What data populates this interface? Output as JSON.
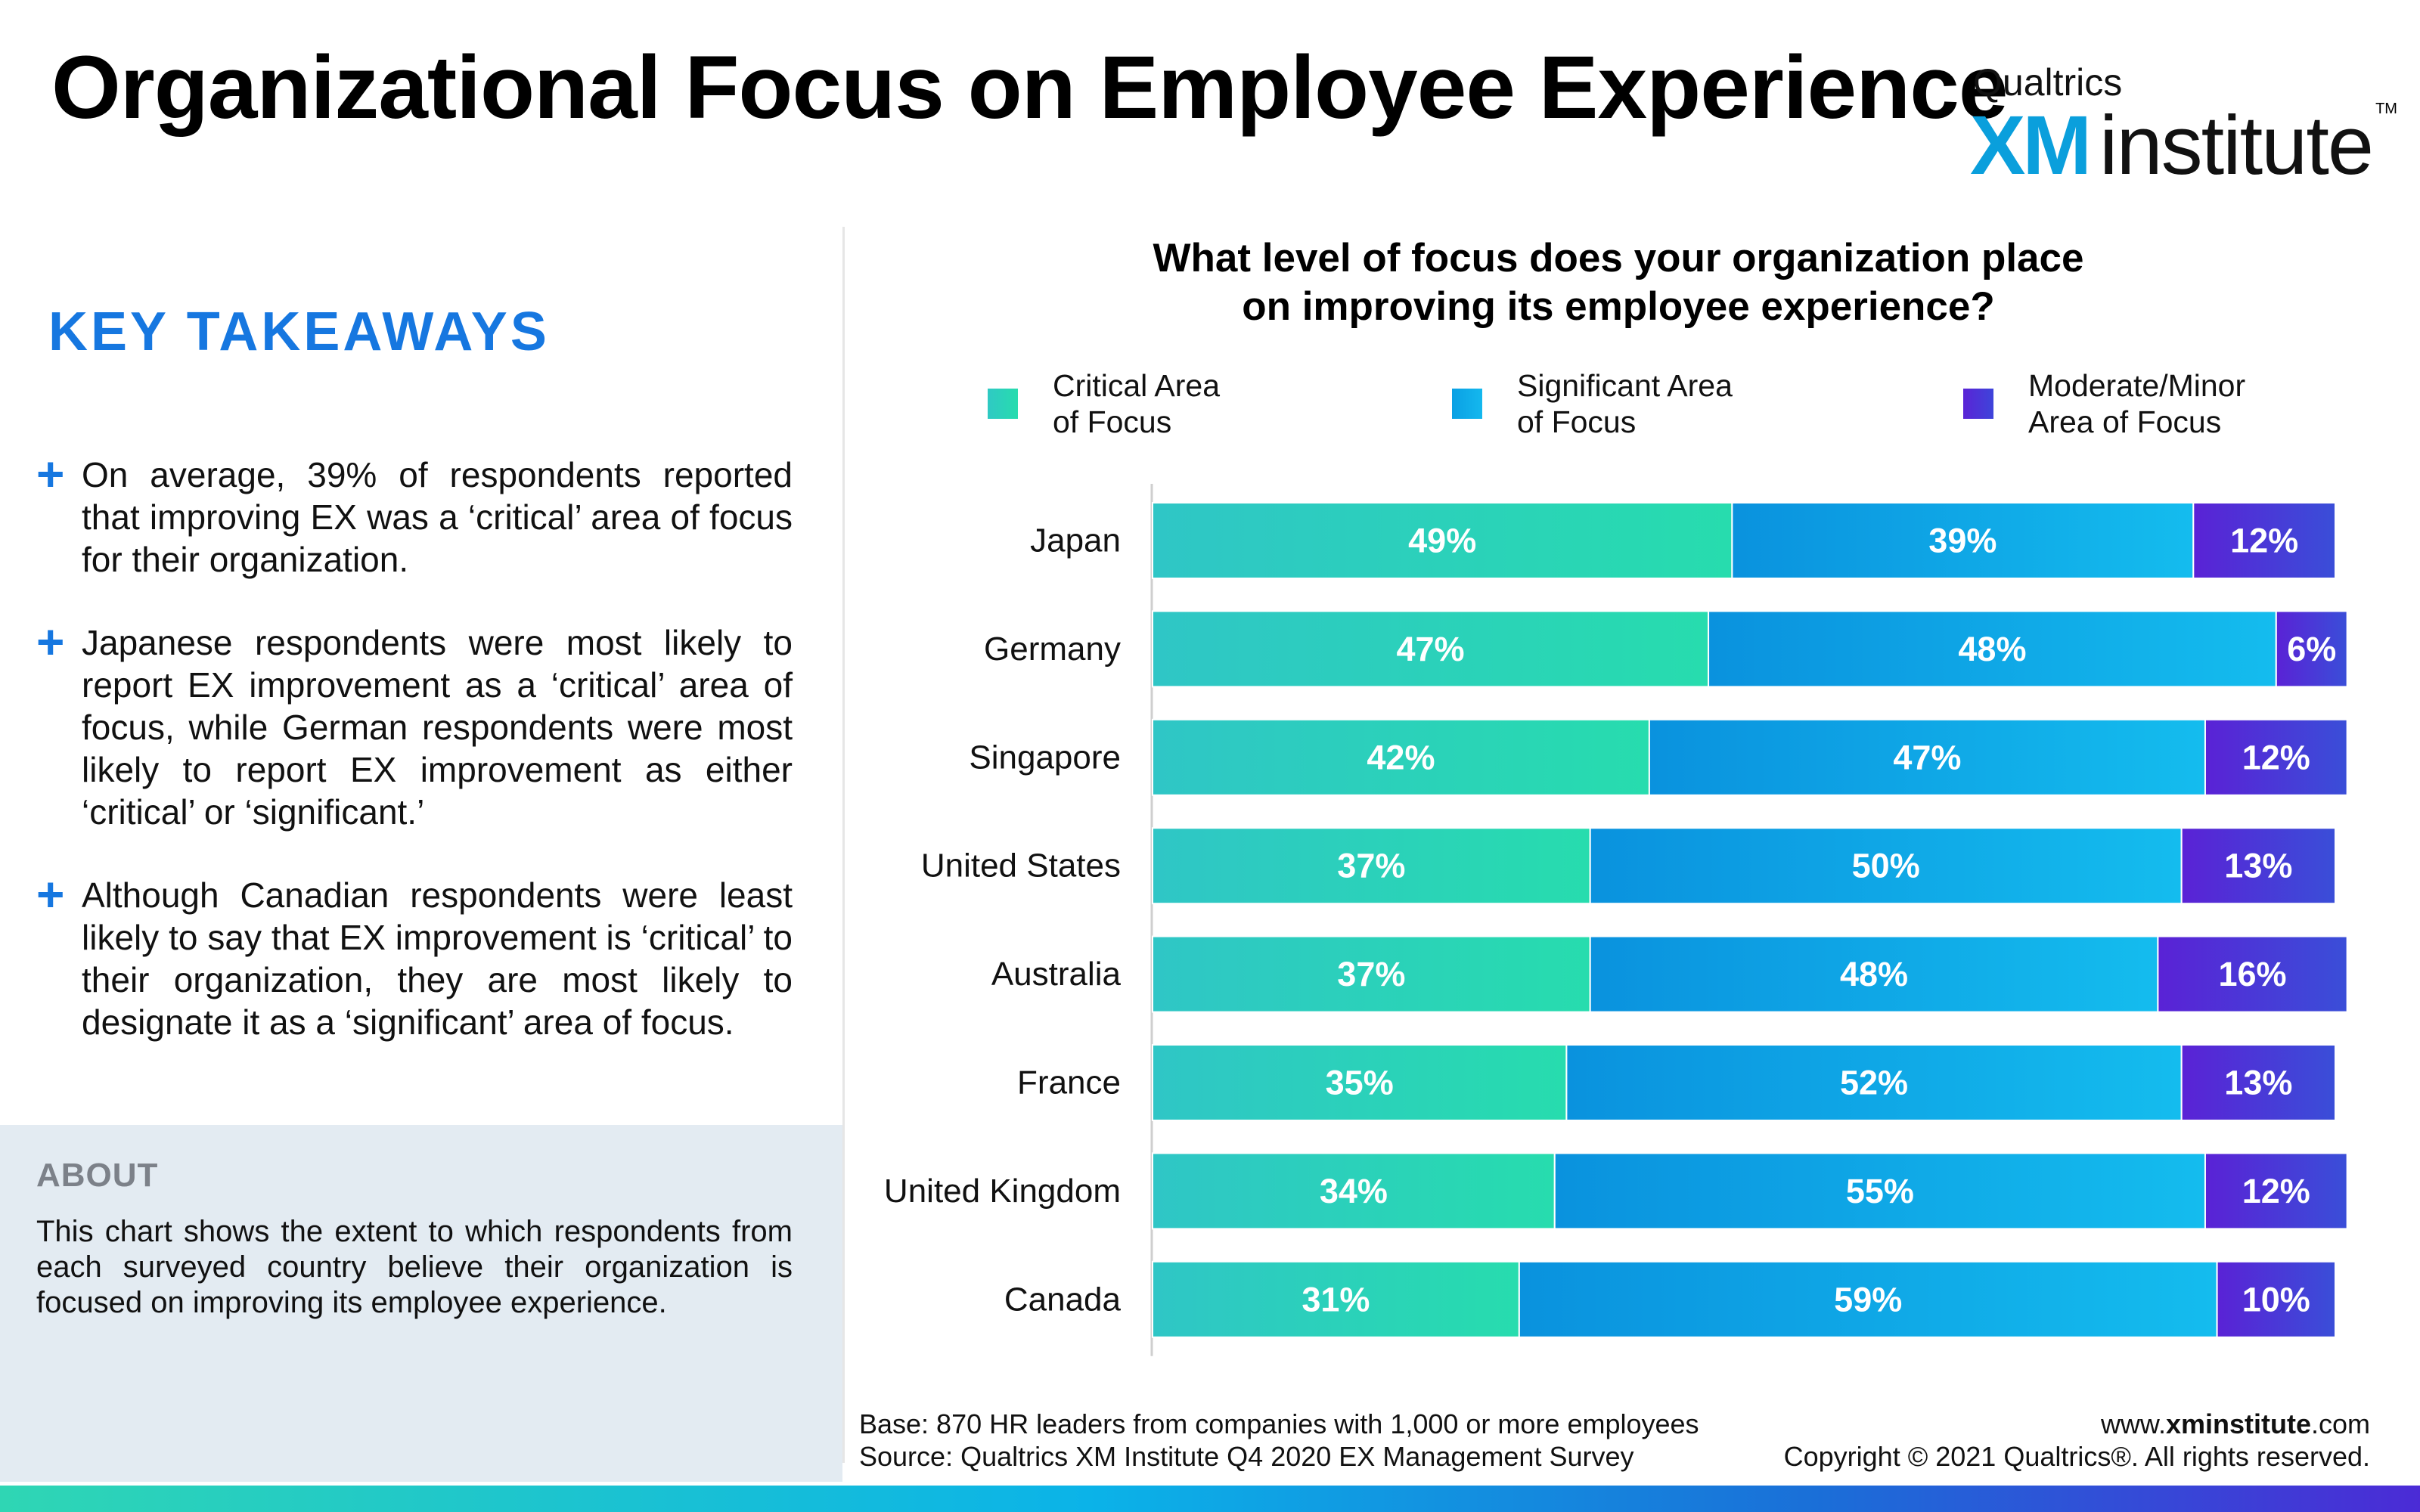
{
  "header": {
    "title": "Organizational Focus on Employee Experience",
    "logo_top": "Qualtrics",
    "logo_xm": "XM",
    "logo_institute": "institute",
    "logo_tm": "TM"
  },
  "takeaways": {
    "heading": "KEY TAKEAWAYS",
    "bullets": [
      "On average, 39% of respondents reported that improving EX was a ‘critical’ area of focus for their organization.",
      "Japanese respondents were most likely to report EX improvement as a ‘critical’ area of focus, while German respondents were most likely to report EX improvement as either ‘critical’ or ‘significant.’",
      "Although Canadian respondents were least likely to say that EX improvement is ‘critical’ to their organization, they are most likely to designate it as a ‘significant’ area of focus."
    ],
    "plus_symbol": "+"
  },
  "about": {
    "heading": "ABOUT",
    "text": "This chart shows the extent to which respondents from each surveyed country believe their organization is focused on improving its employee experience."
  },
  "question": {
    "line1": "What level of focus does your organization place",
    "line2": "on improving its employee experience?"
  },
  "legend": [
    {
      "line1": "Critical Area",
      "line2": "of Focus",
      "color": "#2cd6b6"
    },
    {
      "line1": "Significant Area",
      "line2": "of Focus",
      "color": "#0eb0ea"
    },
    {
      "line1": "Moderate/Minor",
      "line2": "Area of Focus",
      "color": "#4a2ad4"
    }
  ],
  "chart_data": {
    "type": "bar",
    "orientation": "horizontal",
    "stacked": true,
    "categories": [
      "Japan",
      "Germany",
      "Singapore",
      "United States",
      "Australia",
      "France",
      "United Kingdom",
      "Canada"
    ],
    "series": [
      {
        "name": "Critical Area of Focus",
        "values": [
          49,
          47,
          42,
          37,
          37,
          35,
          34,
          31
        ],
        "labels": [
          "49%",
          "47%",
          "42%",
          "37%",
          "37%",
          "35%",
          "34%",
          "31%"
        ],
        "color": "#2cd6b6"
      },
      {
        "name": "Significant Area of Focus",
        "values": [
          39,
          48,
          47,
          50,
          48,
          52,
          55,
          59
        ],
        "labels": [
          "39%",
          "48%",
          "47%",
          "50%",
          "48%",
          "52%",
          "55%",
          "59%"
        ],
        "color": "#0eb0ea"
      },
      {
        "name": "Moderate/Minor Area of Focus",
        "values": [
          12,
          6,
          12,
          13,
          16,
          13,
          12,
          10
        ],
        "labels": [
          "12%",
          "6%",
          "12%",
          "13%",
          "16%",
          "13%",
          "12%",
          "10%"
        ],
        "color": "#4a2ad4"
      }
    ],
    "title": "What level of focus does your organization place on improving its employee experience?",
    "xlabel": "",
    "ylabel": "",
    "xlim": [
      0,
      100
    ],
    "grid": false,
    "legend_position": "top"
  },
  "footer": {
    "base": "Base: 870 HR leaders from companies with 1,000 or more employees",
    "source": "Source: Qualtrics XM Institute Q4 2020  EX Management Survey",
    "website_prefix": "www.",
    "website_bold": "xminstitute",
    "website_suffix": ".com",
    "copyright": "Copyright © 2021 Qualtrics®. All rights reserved."
  }
}
